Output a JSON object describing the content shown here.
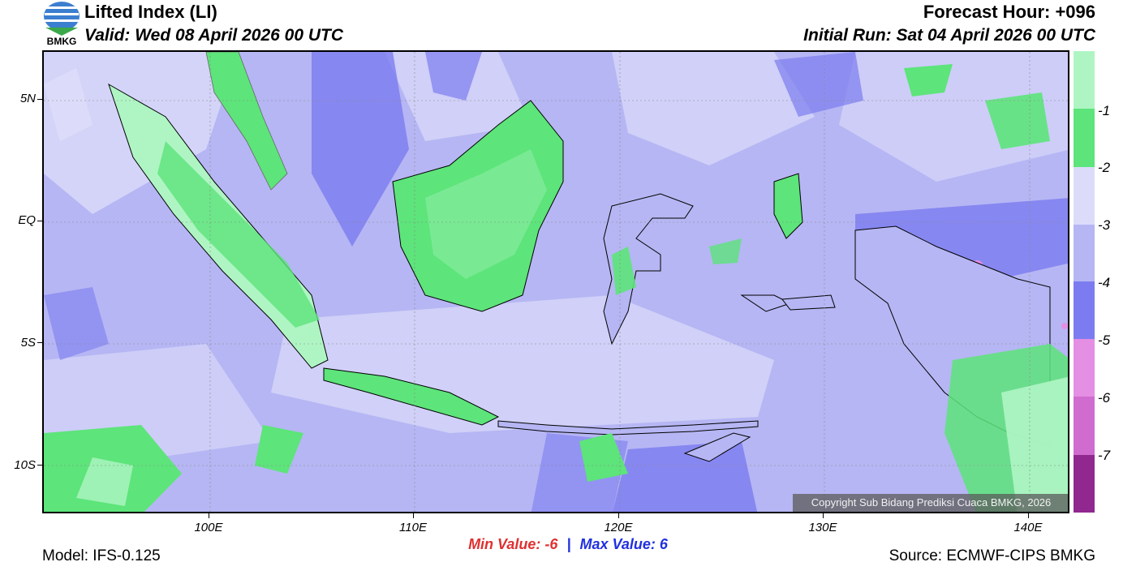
{
  "header": {
    "title": "Lifted Index (LI)",
    "valid": "Valid: Wed 08 April 2026 00 UTC",
    "forecast_hour": "Forecast Hour: +096",
    "initial_run": "Initial Run: Sat 04 April 2026 00 UTC"
  },
  "logo": {
    "text": "BMKG"
  },
  "map": {
    "lat_labels": [
      "5N",
      "EQ",
      "5S",
      "10S"
    ],
    "lon_labels": [
      "100E",
      "110E",
      "120E",
      "130E",
      "140E"
    ],
    "copyright": "Copyright Sub Bidang Prediksi Cuaca BMKG, 2026"
  },
  "colorbar": {
    "labels": [
      "-1",
      "-2",
      "-3",
      "-4",
      "-5",
      "-6",
      "-7"
    ],
    "colors": [
      "#aff5c4",
      "#5de47a",
      "#dcdcfa",
      "#b6b6f4",
      "#7c7cf0",
      "#e48ee4",
      "#d06bd0",
      "#b24cb2",
      "#902890"
    ]
  },
  "stats": {
    "min_label": "Min Value:",
    "min_value": "-6",
    "separator": "|",
    "max_label": "Max Value:",
    "max_value": "6"
  },
  "footer": {
    "model": "Model: IFS-0.125",
    "source": "Source: ECMWF-CIPS BMKG"
  }
}
